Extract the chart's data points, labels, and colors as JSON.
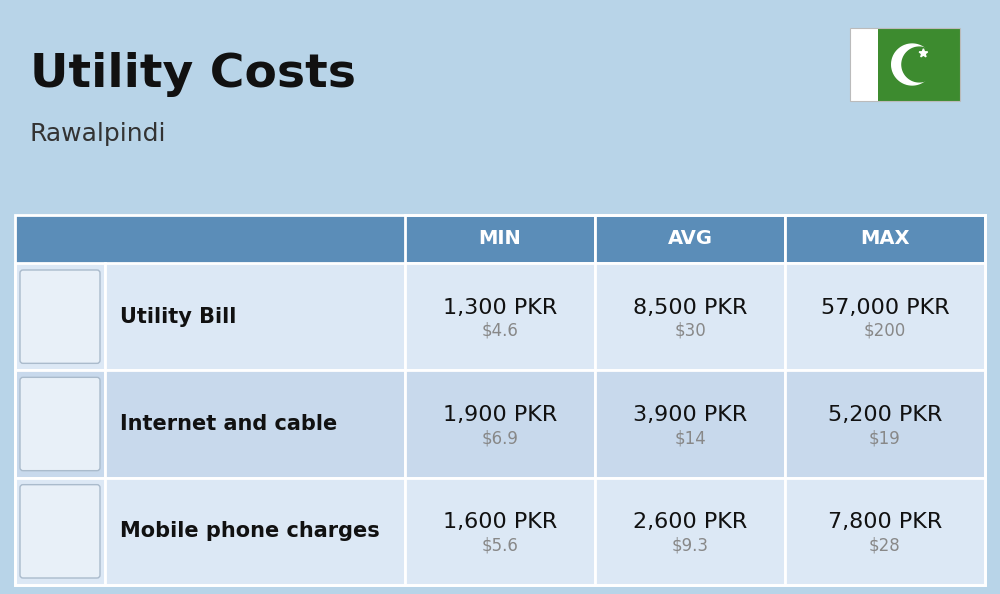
{
  "title": "Utility Costs",
  "subtitle": "Rawalpindi",
  "background_color": "#b8d4e8",
  "header_bg_color": "#5b8db8",
  "header_text_color": "#ffffff",
  "row_bg_color_odd": "#dce8f5",
  "row_bg_color_even": "#c8d9ec",
  "col_headers": [
    "MIN",
    "AVG",
    "MAX"
  ],
  "rows": [
    {
      "label": "Utility Bill",
      "min_pkr": "1,300 PKR",
      "min_usd": "$4.6",
      "avg_pkr": "8,500 PKR",
      "avg_usd": "$30",
      "max_pkr": "57,000 PKR",
      "max_usd": "$200"
    },
    {
      "label": "Internet and cable",
      "min_pkr": "1,900 PKR",
      "min_usd": "$6.9",
      "avg_pkr": "3,900 PKR",
      "avg_usd": "$14",
      "max_pkr": "5,200 PKR",
      "max_usd": "$19"
    },
    {
      "label": "Mobile phone charges",
      "min_pkr": "1,600 PKR",
      "min_usd": "$5.6",
      "avg_pkr": "2,600 PKR",
      "avg_usd": "$9.3",
      "max_pkr": "7,800 PKR",
      "max_usd": "$28"
    }
  ],
  "title_fontsize": 34,
  "subtitle_fontsize": 18,
  "header_fontsize": 14,
  "label_fontsize": 15,
  "value_fontsize": 16,
  "usd_fontsize": 12,
  "flag_green": "#3d8b2f",
  "flag_white": "#ffffff",
  "title_color": "#111111",
  "subtitle_color": "#333333",
  "label_color": "#111111",
  "value_color": "#111111",
  "usd_color": "#888888",
  "separator_color": "#ffffff"
}
